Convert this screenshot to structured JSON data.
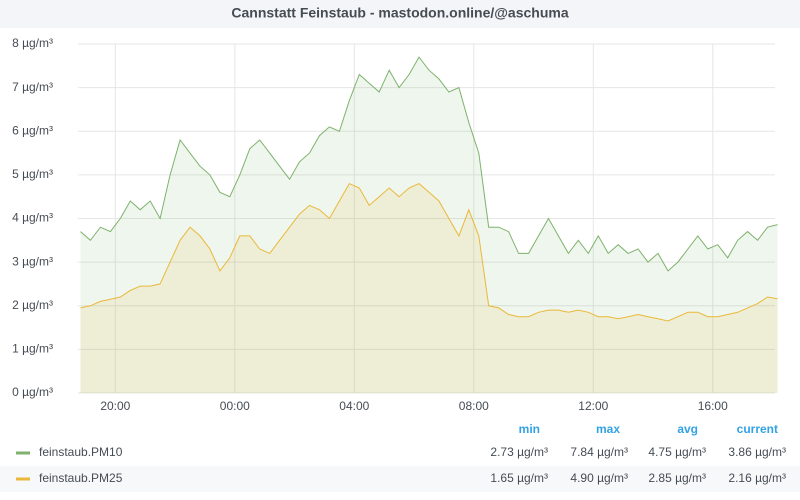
{
  "chart_data": {
    "type": "line",
    "title": "Cannstatt Feinstaub - mastodon.online/@aschuma",
    "x": [
      "18:50",
      "19:10",
      "19:30",
      "19:50",
      "20:10",
      "20:30",
      "20:50",
      "21:10",
      "21:30",
      "21:50",
      "22:10",
      "22:30",
      "22:50",
      "23:10",
      "23:30",
      "23:50",
      "00:10",
      "00:30",
      "00:50",
      "01:10",
      "01:30",
      "01:50",
      "02:10",
      "02:30",
      "02:50",
      "03:10",
      "03:30",
      "03:50",
      "04:10",
      "04:30",
      "04:50",
      "05:10",
      "05:30",
      "05:50",
      "06:10",
      "06:30",
      "06:50",
      "07:10",
      "07:30",
      "07:50",
      "08:10",
      "08:30",
      "08:50",
      "09:10",
      "09:30",
      "09:50",
      "10:10",
      "10:30",
      "10:50",
      "11:10",
      "11:30",
      "11:50",
      "12:10",
      "12:30",
      "12:50",
      "13:10",
      "13:30",
      "13:50",
      "14:10",
      "14:30",
      "14:50",
      "15:10",
      "15:30",
      "15:50",
      "16:10",
      "16:30",
      "16:50",
      "17:10",
      "17:30",
      "17:50",
      "18:10"
    ],
    "xlim": [
      "18:45",
      "18:05"
    ],
    "xticks": [
      "20:00",
      "00:00",
      "04:00",
      "08:00",
      "12:00",
      "16:00"
    ],
    "ylim": [
      0,
      8
    ],
    "yticks": [
      {
        "value": 0,
        "label": "0 µg/m³"
      },
      {
        "value": 1,
        "label": "1 µg/m³"
      },
      {
        "value": 2,
        "label": "2 µg/m³"
      },
      {
        "value": 3,
        "label": "3 µg/m³"
      },
      {
        "value": 4,
        "label": "4 µg/m³"
      },
      {
        "value": 5,
        "label": "5 µg/m³"
      },
      {
        "value": 6,
        "label": "6 µg/m³"
      },
      {
        "value": 7,
        "label": "7 µg/m³"
      },
      {
        "value": 8,
        "label": "8 µg/m³"
      }
    ],
    "grid": true,
    "legend_columns": [
      "min",
      "max",
      "avg",
      "current"
    ],
    "series": [
      {
        "name": "feinstaub.PM10",
        "color": "#7eb26d",
        "values": [
          3.7,
          3.5,
          3.8,
          3.7,
          4.0,
          4.4,
          4.2,
          4.4,
          4.0,
          5.0,
          5.8,
          5.5,
          5.2,
          5.0,
          4.6,
          4.5,
          5.0,
          5.6,
          5.8,
          5.5,
          5.2,
          4.9,
          5.3,
          5.5,
          5.9,
          6.1,
          6.0,
          6.7,
          7.3,
          7.1,
          6.9,
          7.4,
          7.0,
          7.3,
          7.7,
          7.4,
          7.2,
          6.9,
          7.0,
          6.2,
          5.5,
          3.8,
          3.8,
          3.7,
          3.2,
          3.2,
          3.6,
          4.0,
          3.6,
          3.2,
          3.5,
          3.2,
          3.6,
          3.2,
          3.4,
          3.2,
          3.3,
          3.0,
          3.2,
          2.8,
          3.0,
          3.3,
          3.6,
          3.3,
          3.4,
          3.1,
          3.5,
          3.7,
          3.5,
          3.8,
          3.86
        ],
        "legend_values": [
          2.73,
          7.84,
          4.75,
          3.86
        ],
        "legend_value_labels": [
          "2.73 µg/m³",
          "7.84 µg/m³",
          "4.75 µg/m³",
          "3.86 µg/m³"
        ]
      },
      {
        "name": "feinstaub.PM25",
        "color": "#eab839",
        "values": [
          1.95,
          2.0,
          2.1,
          2.15,
          2.2,
          2.35,
          2.45,
          2.45,
          2.5,
          3.0,
          3.5,
          3.8,
          3.6,
          3.3,
          2.8,
          3.1,
          3.6,
          3.6,
          3.3,
          3.2,
          3.5,
          3.8,
          4.1,
          4.3,
          4.2,
          4.0,
          4.4,
          4.8,
          4.7,
          4.3,
          4.5,
          4.7,
          4.5,
          4.7,
          4.8,
          4.6,
          4.4,
          4.0,
          3.6,
          4.2,
          3.6,
          2.0,
          1.95,
          1.8,
          1.75,
          1.75,
          1.85,
          1.9,
          1.9,
          1.85,
          1.9,
          1.85,
          1.75,
          1.75,
          1.7,
          1.75,
          1.8,
          1.75,
          1.7,
          1.65,
          1.75,
          1.85,
          1.85,
          1.75,
          1.75,
          1.8,
          1.85,
          1.95,
          2.05,
          2.2,
          2.16
        ],
        "legend_values": [
          1.65,
          4.9,
          2.85,
          2.16
        ],
        "legend_value_labels": [
          "1.65 µg/m³",
          "4.90 µg/m³",
          "2.85 µg/m³",
          "2.16 µg/m³"
        ]
      }
    ]
  }
}
